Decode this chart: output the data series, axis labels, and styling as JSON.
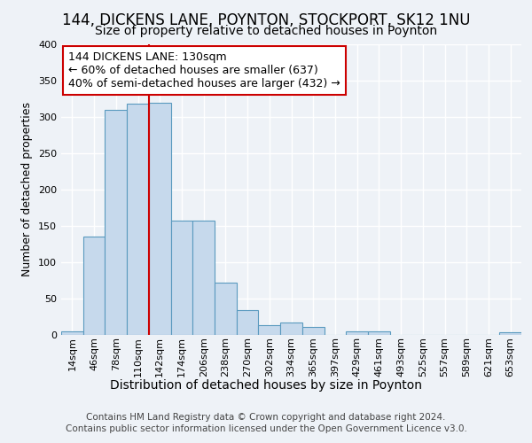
{
  "title1": "144, DICKENS LANE, POYNTON, STOCKPORT, SK12 1NU",
  "title2": "Size of property relative to detached houses in Poynton",
  "xlabel": "Distribution of detached houses by size in Poynton",
  "ylabel": "Number of detached properties",
  "bin_labels": [
    "14sqm",
    "46sqm",
    "78sqm",
    "110sqm",
    "142sqm",
    "174sqm",
    "206sqm",
    "238sqm",
    "270sqm",
    "302sqm",
    "334sqm",
    "365sqm",
    "397sqm",
    "429sqm",
    "461sqm",
    "493sqm",
    "525sqm",
    "557sqm",
    "589sqm",
    "621sqm",
    "653sqm"
  ],
  "bar_heights": [
    4,
    135,
    310,
    318,
    320,
    157,
    157,
    72,
    33,
    13,
    16,
    10,
    0,
    4,
    4,
    0,
    0,
    0,
    0,
    0,
    3
  ],
  "bar_color": "#c6d9ec",
  "bar_edgecolor": "#5a9abf",
  "bar_linewidth": 0.8,
  "red_line_color": "#cc0000",
  "annotation_text": "144 DICKENS LANE: 130sqm\n← 60% of detached houses are smaller (637)\n40% of semi-detached houses are larger (432) →",
  "annotation_box_edgecolor": "#cc0000",
  "annotation_box_facecolor": "#ffffff",
  "ylim": [
    0,
    400
  ],
  "yticks": [
    0,
    50,
    100,
    150,
    200,
    250,
    300,
    350,
    400
  ],
  "footer1": "Contains HM Land Registry data © Crown copyright and database right 2024.",
  "footer2": "Contains public sector information licensed under the Open Government Licence v3.0.",
  "bg_color": "#eef2f7",
  "plot_bg_color": "#eef2f7",
  "grid_color": "#ffffff",
  "title1_fontsize": 12,
  "title2_fontsize": 10,
  "xlabel_fontsize": 10,
  "ylabel_fontsize": 9,
  "tick_fontsize": 8,
  "footer_fontsize": 7.5,
  "annotation_fontsize": 9,
  "red_line_bar_index": 4
}
